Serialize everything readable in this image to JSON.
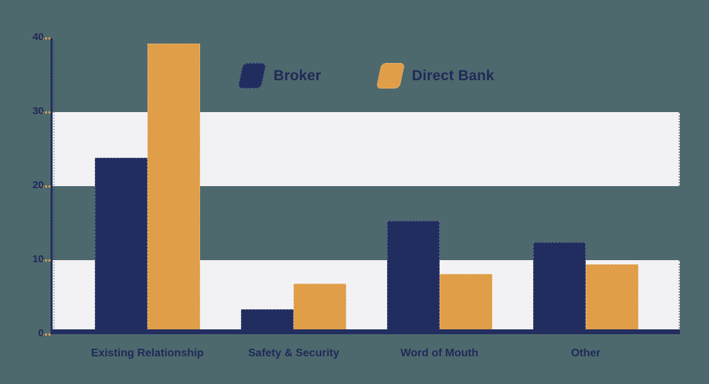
{
  "background_color": "#4E696E",
  "stripe_color": "#F2F2F4",
  "text_color": "#1F2A57",
  "axis_color": "#232E60",
  "tick_dash_color": "#D99A50",
  "chart_data": {
    "type": "bar",
    "title": "",
    "categories": [
      "Existing Relationship",
      "Safety & Security",
      "Word of Mouth",
      "Other"
    ],
    "series": [
      {
        "name": "Broker",
        "color": "#222D5F",
        "values": [
          23.8,
          3.4,
          15.3,
          12.4
        ]
      },
      {
        "name": "Direct Bank",
        "color": "#E09E49",
        "values": [
          39.3,
          6.8,
          8.1,
          9.4
        ]
      }
    ],
    "ylim": [
      0,
      40
    ],
    "yticks": [
      0,
      10,
      20,
      30,
      40
    ],
    "stripe_bands": [
      [
        0,
        10
      ],
      [
        20,
        30
      ]
    ],
    "legend_position": "top-center",
    "grid": false
  }
}
